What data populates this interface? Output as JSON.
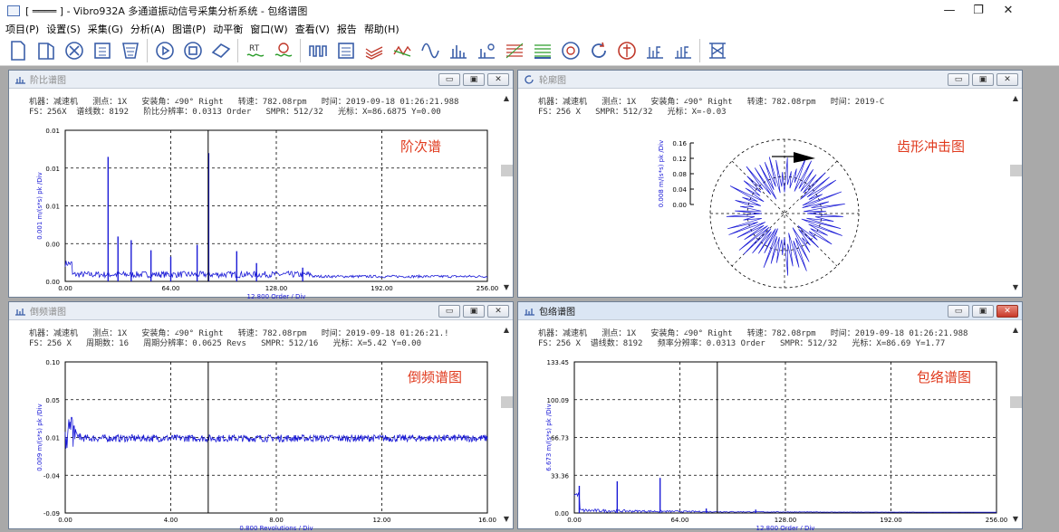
{
  "app": {
    "title": "[ ════ ] - Vibro932A 多通道振动信号采集分析系统 - 包络谱图"
  },
  "menu": [
    "项目(P)",
    "设置(S)",
    "采集(G)",
    "分析(A)",
    "图谱(P)",
    "动平衡",
    "窗口(W)",
    "查看(V)",
    "报告",
    "帮助(H)"
  ],
  "toolbar": {
    "icons": [
      "new-doc-icon",
      "open-folder-icon",
      "stop-circle-icon",
      "save-disk-icon",
      "filter-icon",
      "play-icon",
      "record-icon",
      "tag-icon",
      "rt-icon",
      "clock-wave-icon",
      "pulse-icon",
      "list-icon",
      "spectrum-icon",
      "cascade-icon",
      "sine-icon",
      "bars-icon",
      "order-bars-icon",
      "grid-wave-icon",
      "waterfall-icon",
      "orbit-icon",
      "rotate-icon",
      "phase-icon",
      "le-icon",
      "le2-icon",
      "machine-icon"
    ],
    "rt_label": "RT"
  },
  "panels": {
    "order": {
      "title": "阶比谱图",
      "info1": "机器：减速机   测点：1X   安装角：∠90° Right   转速：782.08rpm   时间：2019-09-18 01:26:21.988",
      "info2": "FS：256X  谱线数：8192   阶比分辨率：0.0313 Order   SMPR：512/32   光标：X=86.6875 Y=0.00",
      "label": "阶次谱",
      "ylabel": "0.001 m/(s*s) pk /Div",
      "xlabel": "12.800 Order / Div",
      "yticks": [
        "0.01",
        "0.01",
        "0.01",
        "0.00",
        "0.00"
      ],
      "xticks": [
        "0.00",
        "64.00",
        "128.00",
        "192.00",
        "256.00"
      ]
    },
    "polar": {
      "title": "轮廓图",
      "info1": "机器：减速机   测点：1X   安装角：∠90° Right   转速：782.08rpm   时间：2019-C",
      "info2": "FS：256 X   SMPR：512/32   光标：X=-0.03",
      "label": "齿形冲击图",
      "ylabel": "0.008 m/(s*s) pk /Div",
      "yticks": [
        "0.16",
        "0.12",
        "0.08",
        "0.04",
        "0.00"
      ]
    },
    "cepstrum": {
      "title": "倒频谱图",
      "info1": "机器：减速机   测点：1X   安装角：∠90° Right   转速：782.08rpm   时间：2019-09-18 01:26:21.!",
      "info2": "FS：256 X   周期数：16   周期分辨率：0.0625 Revs   SMPR：512/16   光标：X=5.42 Y=0.00",
      "label": "倒频谱图",
      "ylabel": "0.009 m/(s*s) pk /Div",
      "xlabel": "0.800 Revolutions / Div",
      "yticks": [
        "0.10",
        "0.05",
        "0.01",
        "-0.04",
        "-0.09"
      ],
      "xticks": [
        "0.00",
        "4.00",
        "8.00",
        "12.00",
        "16.00"
      ]
    },
    "envelope": {
      "title": "包络谱图",
      "info1": "机器：减速机   测点：1X   安装角：∠90° Right   转速：782.08rpm   时间：2019-09-18 01:26:21.988",
      "info2": "FS：256 X  谱线数：8192   频率分辨率：0.0313 Order   SMPR：512/32   光标：X=86.69 Y=1.77",
      "label": "包络谱图",
      "ylabel": "6.673 m/(s*s) pk /Div",
      "xlabel": "12.800 Order / Div",
      "yticks": [
        "133.45",
        "100.09",
        "66.73",
        "33.36",
        "0.00"
      ],
      "xticks": [
        "0.00",
        "64.00",
        "128.00",
        "192.00",
        "256.00"
      ]
    }
  },
  "colors": {
    "trace": "#1a1ad6",
    "cursor": "#000000",
    "label": "#e03a1e"
  },
  "chart_data": [
    {
      "type": "line",
      "title": "阶次谱",
      "xlabel": "12.800 Order / Div",
      "ylabel": "0.001 m/(s*s) pk /Div",
      "xlim": [
        0,
        256
      ],
      "cursor_x": 86.6875,
      "peaks": [
        [
          26,
          0.0136
        ],
        [
          32,
          0.0049
        ],
        [
          40,
          0.0045
        ],
        [
          52,
          0.0034
        ],
        [
          64,
          0.0027
        ],
        [
          80,
          0.004
        ],
        [
          87,
          0.014
        ],
        [
          104,
          0.0033
        ],
        [
          116,
          0.002
        ],
        [
          144,
          0.0015
        ]
      ]
    },
    {
      "type": "scatter",
      "title": "齿形冲击图",
      "ylabel": "0.008 m/(s*s) pk /Div",
      "ylim": [
        0,
        0.16
      ],
      "polar": true
    },
    {
      "type": "line",
      "title": "倒频谱图",
      "xlabel": "0.800 Revolutions / Div",
      "ylabel": "0.009 m/(s*s) pk /Div",
      "xlim": [
        0,
        16
      ],
      "ylim": [
        -0.09,
        0.1
      ],
      "cursor_x": 5.42
    },
    {
      "type": "line",
      "title": "包络谱图",
      "xlabel": "12.800 Order / Div",
      "ylabel": "6.673 m/(s*s) pk /Div",
      "xlim": [
        0,
        256
      ],
      "ylim": [
        0,
        133.45
      ],
      "cursor_x": 86.69,
      "peaks": [
        [
          3,
          24
        ],
        [
          26,
          28
        ],
        [
          52,
          31
        ],
        [
          80,
          4
        ],
        [
          110,
          3
        ]
      ]
    }
  ]
}
